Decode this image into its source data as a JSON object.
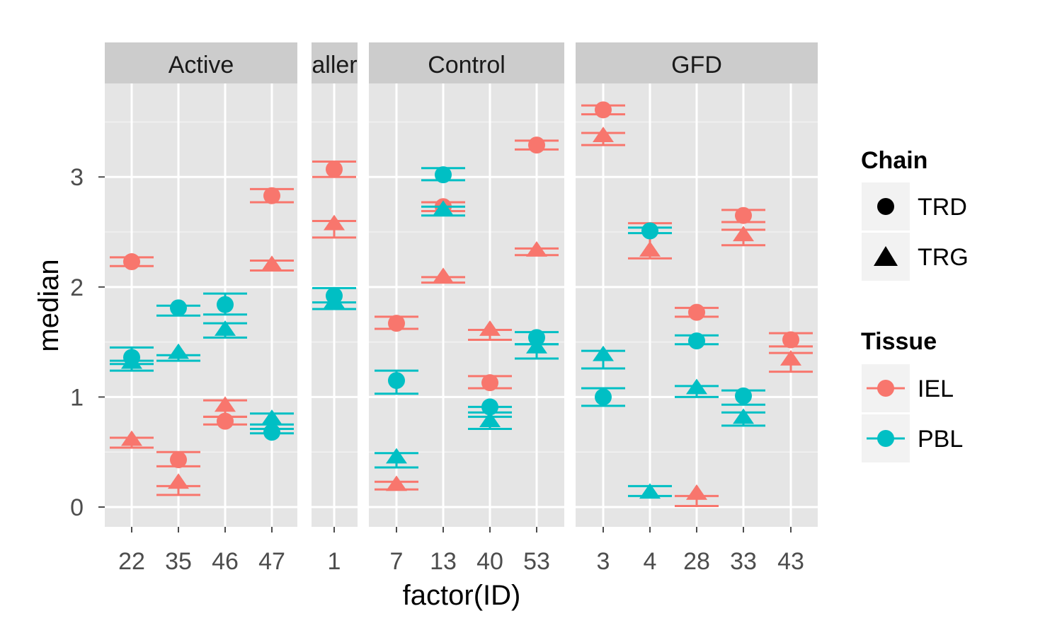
{
  "chart_data": {
    "type": "scatter",
    "xlabel": "factor(ID)",
    "ylabel": "median",
    "ylim": [
      -0.18,
      3.85
    ],
    "yticks": [
      0,
      1,
      2,
      3
    ],
    "y_tick_labels": [
      "0",
      "1",
      "2",
      "3"
    ],
    "grid": true,
    "legend_placement": "right",
    "facets": [
      {
        "label": "Active",
        "categories": [
          "22",
          "35",
          "46",
          "47"
        ]
      },
      {
        "label": "aller",
        "categories": [
          "1"
        ]
      },
      {
        "label": "Control",
        "categories": [
          "7",
          "13",
          "40",
          "53"
        ]
      },
      {
        "label": "GFD",
        "categories": [
          "3",
          "4",
          "28",
          "33",
          "43"
        ]
      }
    ],
    "legends": {
      "chain": {
        "title": "Chain",
        "items": [
          {
            "label": "TRD",
            "shape": "circle"
          },
          {
            "label": "TRG",
            "shape": "triangle"
          }
        ]
      },
      "tissue": {
        "title": "Tissue",
        "items": [
          {
            "label": "IEL",
            "color": "#F8766D"
          },
          {
            "label": "PBL",
            "color": "#00BFC4"
          }
        ]
      }
    },
    "colors": {
      "IEL": "#F8766D",
      "PBL": "#00BFC4"
    },
    "series": [
      {
        "tissue": "IEL",
        "chain": "TRD",
        "points": [
          {
            "facet": "Active",
            "x": "22",
            "y": 2.23,
            "ymin": 2.19,
            "ymax": 2.27
          },
          {
            "facet": "Active",
            "x": "35",
            "y": 0.43,
            "ymin": 0.37,
            "ymax": 0.5
          },
          {
            "facet": "Active",
            "x": "46",
            "y": 0.78,
            "ymin": 0.75,
            "ymax": 0.82
          },
          {
            "facet": "Active",
            "x": "47",
            "y": 2.83,
            "ymin": 2.77,
            "ymax": 2.89
          },
          {
            "facet": "aller",
            "x": "1",
            "y": 3.07,
            "ymin": 3.0,
            "ymax": 3.14
          },
          {
            "facet": "Control",
            "x": "7",
            "y": 1.67,
            "ymin": 1.62,
            "ymax": 1.73
          },
          {
            "facet": "Control",
            "x": "13",
            "y": 2.73,
            "ymin": 2.69,
            "ymax": 2.77
          },
          {
            "facet": "Control",
            "x": "40",
            "y": 1.13,
            "ymin": 1.08,
            "ymax": 1.19
          },
          {
            "facet": "Control",
            "x": "53",
            "y": 3.29,
            "ymin": 3.25,
            "ymax": 3.33
          },
          {
            "facet": "GFD",
            "x": "3",
            "y": 3.61,
            "ymin": 3.57,
            "ymax": 3.65
          },
          {
            "facet": "GFD",
            "x": "28",
            "y": 1.77,
            "ymin": 1.73,
            "ymax": 1.81
          },
          {
            "facet": "GFD",
            "x": "33",
            "y": 2.65,
            "ymin": 2.59,
            "ymax": 2.7
          },
          {
            "facet": "GFD",
            "x": "43",
            "y": 1.52,
            "ymin": 1.46,
            "ymax": 1.58
          }
        ]
      },
      {
        "tissue": "IEL",
        "chain": "TRG",
        "points": [
          {
            "facet": "Active",
            "x": "22",
            "y": 0.61,
            "ymin": 0.54,
            "ymax": 0.63
          },
          {
            "facet": "Active",
            "x": "35",
            "y": 0.22,
            "ymin": 0.11,
            "ymax": 0.19
          },
          {
            "facet": "Active",
            "x": "46",
            "y": 0.92,
            "ymin": 0.82,
            "ymax": 0.97
          },
          {
            "facet": "Active",
            "x": "47",
            "y": 2.2,
            "ymin": 2.15,
            "ymax": 2.24
          },
          {
            "facet": "aller",
            "x": "1",
            "y": 2.57,
            "ymin": 2.45,
            "ymax": 2.6
          },
          {
            "facet": "Control",
            "x": "7",
            "y": 0.2,
            "ymin": 0.16,
            "ymax": 0.23
          },
          {
            "facet": "Control",
            "x": "13",
            "y": 2.09,
            "ymin": 2.04,
            "ymax": 2.09
          },
          {
            "facet": "Control",
            "x": "40",
            "y": 1.61,
            "ymin": 1.52,
            "ymax": 1.61
          },
          {
            "facet": "Control",
            "x": "53",
            "y": 2.33,
            "ymin": 2.29,
            "ymax": 2.35
          },
          {
            "facet": "GFD",
            "x": "3",
            "y": 3.37,
            "ymin": 3.29,
            "ymax": 3.4
          },
          {
            "facet": "GFD",
            "x": "4",
            "y": 2.33,
            "ymin": 2.26,
            "ymax": 2.58
          },
          {
            "facet": "GFD",
            "x": "28",
            "y": 0.12,
            "ymin": 0.01,
            "ymax": 0.1
          },
          {
            "facet": "GFD",
            "x": "33",
            "y": 2.47,
            "ymin": 2.38,
            "ymax": 2.52
          },
          {
            "facet": "GFD",
            "x": "43",
            "y": 1.34,
            "ymin": 1.23,
            "ymax": 1.4
          }
        ]
      },
      {
        "tissue": "PBL",
        "chain": "TRD",
        "points": [
          {
            "facet": "Active",
            "x": "22",
            "y": 1.36,
            "ymin": 1.3,
            "ymax": 1.45
          },
          {
            "facet": "Active",
            "x": "35",
            "y": 1.81,
            "ymin": 1.74,
            "ymax": 1.83
          },
          {
            "facet": "Active",
            "x": "46",
            "y": 1.84,
            "ymin": 1.75,
            "ymax": 1.94
          },
          {
            "facet": "Active",
            "x": "47",
            "y": 0.68,
            "ymin": 0.67,
            "ymax": 0.75
          },
          {
            "facet": "aller",
            "x": "1",
            "y": 1.92,
            "ymin": 1.8,
            "ymax": 1.99
          },
          {
            "facet": "Control",
            "x": "7",
            "y": 1.15,
            "ymin": 1.03,
            "ymax": 1.24
          },
          {
            "facet": "Control",
            "x": "13",
            "y": 3.02,
            "ymin": 2.97,
            "ymax": 3.08
          },
          {
            "facet": "Control",
            "x": "40",
            "y": 0.91,
            "ymin": 0.86,
            "ymax": 0.91
          },
          {
            "facet": "Control",
            "x": "53",
            "y": 1.54,
            "ymin": 1.48,
            "ymax": 1.59
          },
          {
            "facet": "GFD",
            "x": "3",
            "y": 1.0,
            "ymin": 0.92,
            "ymax": 1.08
          },
          {
            "facet": "GFD",
            "x": "4",
            "y": 2.51,
            "ymin": 2.49,
            "ymax": 2.54
          },
          {
            "facet": "GFD",
            "x": "28",
            "y": 1.51,
            "ymin": 1.48,
            "ymax": 1.56
          },
          {
            "facet": "GFD",
            "x": "33",
            "y": 1.01,
            "ymin": 0.93,
            "ymax": 1.06
          }
        ]
      },
      {
        "tissue": "PBL",
        "chain": "TRG",
        "points": [
          {
            "facet": "Active",
            "x": "22",
            "y": 1.31,
            "ymin": 1.24,
            "ymax": 1.33
          },
          {
            "facet": "Active",
            "x": "35",
            "y": 1.4,
            "ymin": 1.33,
            "ymax": 1.38
          },
          {
            "facet": "Active",
            "x": "46",
            "y": 1.61,
            "ymin": 1.54,
            "ymax": 1.67
          },
          {
            "facet": "Active",
            "x": "47",
            "y": 0.8,
            "ymin": 0.71,
            "ymax": 0.85
          },
          {
            "facet": "aller",
            "x": "1",
            "y": 1.86,
            "ymin": 1.8,
            "ymax": 1.86
          },
          {
            "facet": "Control",
            "x": "7",
            "y": 0.45,
            "ymin": 0.36,
            "ymax": 0.49
          },
          {
            "facet": "Control",
            "x": "13",
            "y": 2.7,
            "ymin": 2.65,
            "ymax": 2.73
          },
          {
            "facet": "Control",
            "x": "40",
            "y": 0.78,
            "ymin": 0.71,
            "ymax": 0.82
          },
          {
            "facet": "Control",
            "x": "53",
            "y": 1.45,
            "ymin": 1.35,
            "ymax": 1.48
          },
          {
            "facet": "GFD",
            "x": "3",
            "y": 1.38,
            "ymin": 1.26,
            "ymax": 1.42
          },
          {
            "facet": "GFD",
            "x": "4",
            "y": 0.13,
            "ymin": 0.1,
            "ymax": 0.19
          },
          {
            "facet": "GFD",
            "x": "28",
            "y": 1.08,
            "ymin": 1.0,
            "ymax": 1.1
          },
          {
            "facet": "GFD",
            "x": "33",
            "y": 0.81,
            "ymin": 0.74,
            "ymax": 0.86
          }
        ]
      }
    ]
  }
}
